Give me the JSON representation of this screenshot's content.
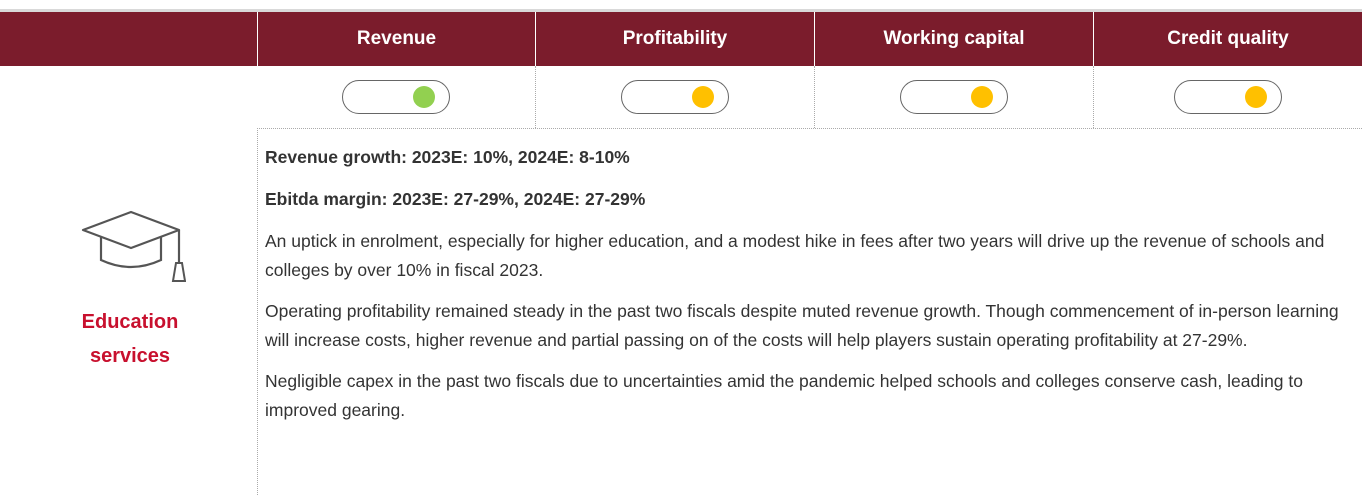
{
  "header": {
    "columns": [
      "Revenue",
      "Profitability",
      "Working capital",
      "Credit quality"
    ]
  },
  "indicators": [
    {
      "color": "#92d050"
    },
    {
      "color": "#ffc000"
    },
    {
      "color": "#ffc000"
    },
    {
      "color": "#ffc000"
    }
  ],
  "sector": {
    "name": "Education services"
  },
  "highlights": [
    "Revenue growth: 2023E: 10%, 2024E: 8-10%",
    "Ebitda margin: 2023E: 27-29%, 2024E: 27-29%"
  ],
  "paragraphs": [
    "An uptick in enrolment, especially for higher education, and a modest hike in fees after two years will drive up the revenue of schools and colleges by over 10% in fiscal 2023.",
    "Operating profitability remained steady in the past two fiscals despite muted revenue growth. Though commencement of in-person learning will increase costs, higher revenue and partial passing on of the costs will help players sustain operating profitability at 27-29%.",
    "Negligible capex in the past two fiscals due to uncertainties amid the pandemic helped schools and colleges conserve cash, leading to improved gearing."
  ]
}
